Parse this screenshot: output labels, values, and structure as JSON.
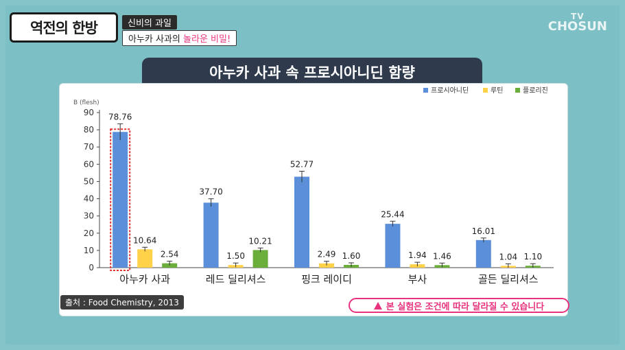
{
  "header": {
    "show_logo": "역전의 한방",
    "tag_top": "신비의 과일",
    "tag_bottom_pre": "아누카 사과의 ",
    "tag_bottom_highlight": "놀라운 비밀!",
    "channel_top": "TV",
    "channel_name": "CHOSUN"
  },
  "title": "아누카 사과 속 프로시아니딘 함량",
  "source": "출처 : Food Chemistry, 2013",
  "notice": "본 실험은 조건에 따라 달라질 수 있습니다",
  "chart_data": {
    "type": "bar",
    "unit_label": "B (flesh)",
    "ylim": [
      0,
      90
    ],
    "yticks": [
      0,
      10,
      20,
      30,
      40,
      50,
      60,
      70,
      80,
      90
    ],
    "legend_position": "top-right",
    "grid": false,
    "categories": [
      "아누카 사과",
      "레드 딜리셔스",
      "핑크 레이디",
      "부사",
      "골든 딜리셔스"
    ],
    "series": [
      {
        "name": "프로시아니딘",
        "color": "#5b8fd9",
        "values": [
          78.76,
          37.7,
          52.77,
          25.44,
          16.01
        ],
        "labels": [
          "78.76",
          "37.70",
          "52.77",
          "25.44",
          "16.01"
        ]
      },
      {
        "name": "루틴",
        "color": "#ffd24a",
        "values": [
          10.64,
          1.5,
          2.49,
          1.94,
          1.04
        ],
        "labels": [
          "10.64",
          "1.50",
          "2.49",
          "1.94",
          "1.04"
        ]
      },
      {
        "name": "플로리진",
        "color": "#6cae3c",
        "values": [
          2.54,
          10.21,
          1.6,
          1.46,
          1.1
        ],
        "labels": [
          "2.54",
          "10.21",
          "1.60",
          "1.46",
          "1.10"
        ]
      }
    ],
    "highlight_category": "아누카 사과"
  }
}
